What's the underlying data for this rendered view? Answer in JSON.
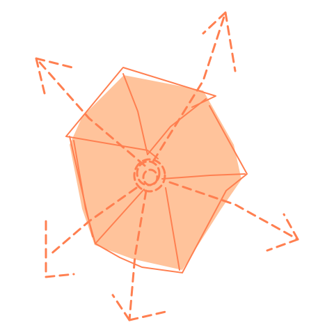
{
  "drawing": {
    "subject": "",
    "colors": {
      "fill": "#FFC39B",
      "stroke": "#FF7F50",
      "background": "#FFFFFF"
    },
    "spoke_count": 6,
    "style": "hand-drawn"
  }
}
